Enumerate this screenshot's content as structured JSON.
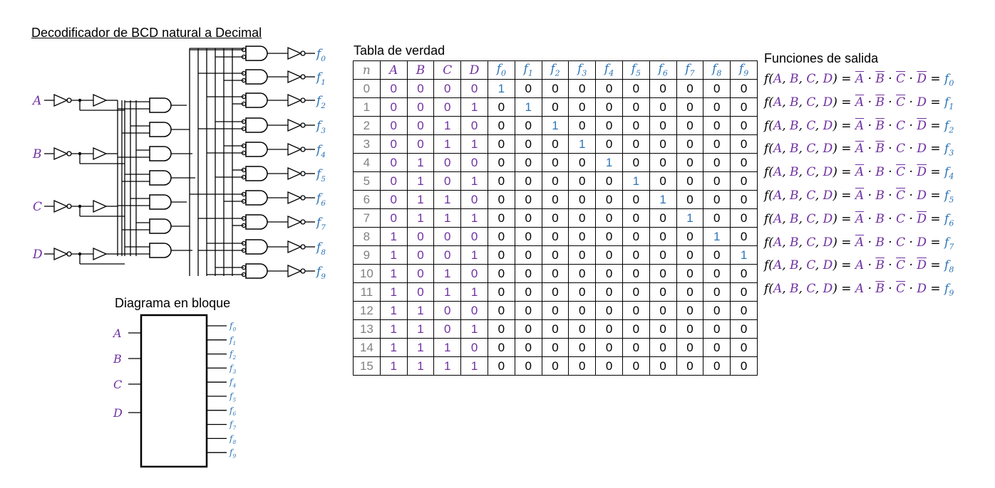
{
  "circuit": {
    "title": "Decodificador de BCD natural a Decimal",
    "inputs": [
      "A",
      "B",
      "C",
      "D"
    ],
    "outputs": [
      "f0",
      "f1",
      "f2",
      "f3",
      "f4",
      "f5",
      "f6",
      "f7",
      "f8",
      "f9"
    ]
  },
  "block": {
    "title": "Diagrama en bloque",
    "inputs": [
      "A",
      "B",
      "C",
      "D"
    ],
    "outputs": [
      "f0",
      "f1",
      "f2",
      "f3",
      "f4",
      "f5",
      "f6",
      "f7",
      "f8",
      "f9"
    ]
  },
  "truth_table": {
    "title": "Tabla de verdad",
    "headers": [
      "n",
      "A",
      "B",
      "C",
      "D",
      "f0",
      "f1",
      "f2",
      "f3",
      "f4",
      "f5",
      "f6",
      "f7",
      "f8",
      "f9"
    ],
    "rows": [
      [
        "0",
        "0",
        "0",
        "0",
        "0",
        "1",
        "0",
        "0",
        "0",
        "0",
        "0",
        "0",
        "0",
        "0",
        "0"
      ],
      [
        "1",
        "0",
        "0",
        "0",
        "1",
        "0",
        "1",
        "0",
        "0",
        "0",
        "0",
        "0",
        "0",
        "0",
        "0"
      ],
      [
        "2",
        "0",
        "0",
        "1",
        "0",
        "0",
        "0",
        "1",
        "0",
        "0",
        "0",
        "0",
        "0",
        "0",
        "0"
      ],
      [
        "3",
        "0",
        "0",
        "1",
        "1",
        "0",
        "0",
        "0",
        "1",
        "0",
        "0",
        "0",
        "0",
        "0",
        "0"
      ],
      [
        "4",
        "0",
        "1",
        "0",
        "0",
        "0",
        "0",
        "0",
        "0",
        "1",
        "0",
        "0",
        "0",
        "0",
        "0"
      ],
      [
        "5",
        "0",
        "1",
        "0",
        "1",
        "0",
        "0",
        "0",
        "0",
        "0",
        "1",
        "0",
        "0",
        "0",
        "0"
      ],
      [
        "6",
        "0",
        "1",
        "1",
        "0",
        "0",
        "0",
        "0",
        "0",
        "0",
        "0",
        "1",
        "0",
        "0",
        "0"
      ],
      [
        "7",
        "0",
        "1",
        "1",
        "1",
        "0",
        "0",
        "0",
        "0",
        "0",
        "0",
        "0",
        "1",
        "0",
        "0"
      ],
      [
        "8",
        "1",
        "0",
        "0",
        "0",
        "0",
        "0",
        "0",
        "0",
        "0",
        "0",
        "0",
        "0",
        "1",
        "0"
      ],
      [
        "9",
        "1",
        "0",
        "0",
        "1",
        "0",
        "0",
        "0",
        "0",
        "0",
        "0",
        "0",
        "0",
        "0",
        "1"
      ],
      [
        "10",
        "1",
        "0",
        "1",
        "0",
        "0",
        "0",
        "0",
        "0",
        "0",
        "0",
        "0",
        "0",
        "0",
        "0"
      ],
      [
        "11",
        "1",
        "0",
        "1",
        "1",
        "0",
        "0",
        "0",
        "0",
        "0",
        "0",
        "0",
        "0",
        "0",
        "0"
      ],
      [
        "12",
        "1",
        "1",
        "0",
        "0",
        "0",
        "0",
        "0",
        "0",
        "0",
        "0",
        "0",
        "0",
        "0",
        "0"
      ],
      [
        "13",
        "1",
        "1",
        "0",
        "1",
        "0",
        "0",
        "0",
        "0",
        "0",
        "0",
        "0",
        "0",
        "0",
        "0"
      ],
      [
        "14",
        "1",
        "1",
        "1",
        "0",
        "0",
        "0",
        "0",
        "0",
        "0",
        "0",
        "0",
        "0",
        "0",
        "0"
      ],
      [
        "15",
        "1",
        "1",
        "1",
        "1",
        "0",
        "0",
        "0",
        "0",
        "0",
        "0",
        "0",
        "0",
        "0",
        "0"
      ]
    ]
  },
  "functions": {
    "title": "Funciones de salida",
    "lhs": "f(A, B, C, D) =",
    "terms": [
      {
        "lits": [
          [
            "A",
            true
          ],
          [
            "B",
            true
          ],
          [
            "C",
            true
          ],
          [
            "D",
            true
          ]
        ],
        "out": "f0"
      },
      {
        "lits": [
          [
            "A",
            true
          ],
          [
            "B",
            true
          ],
          [
            "C",
            true
          ],
          [
            "D",
            false
          ]
        ],
        "out": "f1"
      },
      {
        "lits": [
          [
            "A",
            true
          ],
          [
            "B",
            true
          ],
          [
            "C",
            false
          ],
          [
            "D",
            true
          ]
        ],
        "out": "f2"
      },
      {
        "lits": [
          [
            "A",
            true
          ],
          [
            "B",
            true
          ],
          [
            "C",
            false
          ],
          [
            "D",
            false
          ]
        ],
        "out": "f3"
      },
      {
        "lits": [
          [
            "A",
            true
          ],
          [
            "B",
            false
          ],
          [
            "C",
            true
          ],
          [
            "D",
            true
          ]
        ],
        "out": "f4"
      },
      {
        "lits": [
          [
            "A",
            true
          ],
          [
            "B",
            false
          ],
          [
            "C",
            true
          ],
          [
            "D",
            false
          ]
        ],
        "out": "f5"
      },
      {
        "lits": [
          [
            "A",
            true
          ],
          [
            "B",
            false
          ],
          [
            "C",
            false
          ],
          [
            "D",
            true
          ]
        ],
        "out": "f6"
      },
      {
        "lits": [
          [
            "A",
            true
          ],
          [
            "B",
            false
          ],
          [
            "C",
            false
          ],
          [
            "D",
            false
          ]
        ],
        "out": "f7"
      },
      {
        "lits": [
          [
            "A",
            false
          ],
          [
            "B",
            true
          ],
          [
            "C",
            true
          ],
          [
            "D",
            true
          ]
        ],
        "out": "f8"
      },
      {
        "lits": [
          [
            "A",
            false
          ],
          [
            "B",
            true
          ],
          [
            "C",
            true
          ],
          [
            "D",
            false
          ]
        ],
        "out": "f9"
      }
    ]
  },
  "colors": {
    "input": "#7030a0",
    "output": "#2e75b6",
    "index": "#808080"
  }
}
